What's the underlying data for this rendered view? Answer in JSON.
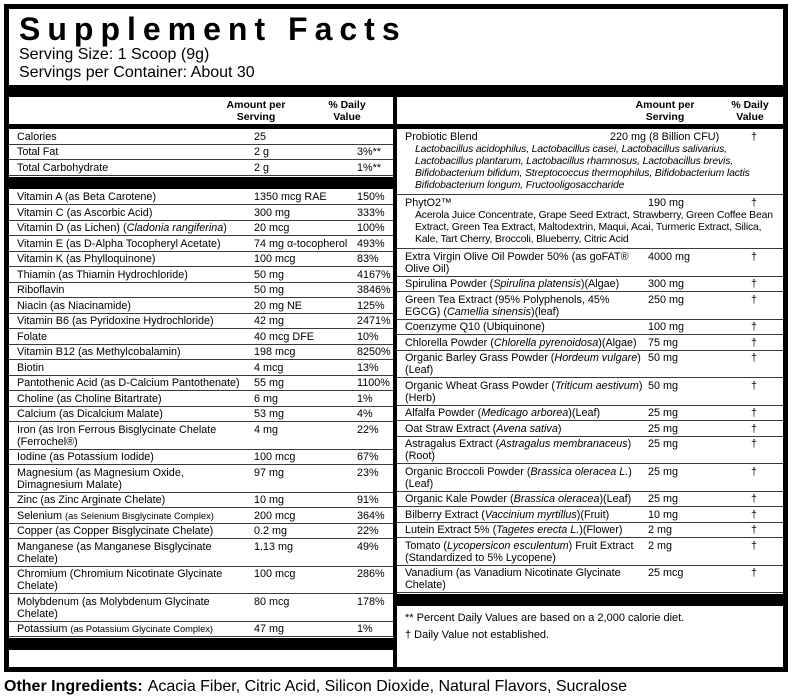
{
  "title": "Supplement Facts",
  "serving_size": "Serving Size: 1 Scoop (9g)",
  "servings_per_container": "Servings per Container: About 30",
  "table_header": {
    "amount": "Amount per Serving",
    "daily_value": "% Daily Value"
  },
  "left_rows": [
    {
      "name": "Calories",
      "amount": "25",
      "dv": ""
    },
    {
      "name": "Total Fat",
      "amount": "2 g",
      "dv": "3%**"
    },
    {
      "name": "Total Carbohydrate",
      "amount": "2 g",
      "dv": "1%**"
    },
    {
      "bar": true
    },
    {
      "name": "Vitamin A (as Beta Carotene)",
      "amount": "1350 mcg RAE",
      "dv": "150%"
    },
    {
      "name": "Vitamin C (as Ascorbic Acid)",
      "amount": "300 mg",
      "dv": "333%"
    },
    {
      "name": "Vitamin D (as Lichen) (*Cladonia rangiferina*)",
      "amount": "20 mcg",
      "dv": "100%"
    },
    {
      "name": "Vitamin E (as D-Alpha Tocopheryl Acetate)",
      "amount": "74 mg α-tocopherol",
      "dv": "493%"
    },
    {
      "name": "Vitamin K (as Phylloquinone)",
      "amount": "100 mcg",
      "dv": "83%"
    },
    {
      "name": "Thiamin (as Thiamin Hydrochloride)",
      "amount": "50 mg",
      "dv": "4167%"
    },
    {
      "name": "Riboflavin",
      "amount": "50 mg",
      "dv": "3846%"
    },
    {
      "name": "Niacin (as Niacinamide)",
      "amount": "20 mg NE",
      "dv": "125%"
    },
    {
      "name": "Vitamin B6 (as Pyridoxine Hydrochloride)",
      "amount": "42 mg",
      "dv": "2471%"
    },
    {
      "name": "Folate",
      "amount": "40 mcg DFE",
      "dv": "10%"
    },
    {
      "name": "Vitamin B12 (as Methylcobalamin)",
      "amount": "198 mcg",
      "dv": "8250%"
    },
    {
      "name": "Biotin",
      "amount": "4 mcg",
      "dv": "13%"
    },
    {
      "name": "Pantothenic Acid (as D-Calcium Pantothenate)",
      "amount": "55 mg",
      "dv": "1100%"
    },
    {
      "name": "Choline (as Choline Bitartrate)",
      "amount": "6 mg",
      "dv": "1%"
    },
    {
      "name": "Calcium (as Dicalcium Malate)",
      "amount": "53 mg",
      "dv": "4%"
    },
    {
      "name": "Iron (as Iron Ferrous Bisglycinate Chelate (Ferrochel®)",
      "amount": "4 mg",
      "dv": "22%"
    },
    {
      "name": "Iodine (as Potassium Iodide)",
      "amount": "100 mcg",
      "dv": "67%"
    },
    {
      "name": "Magnesium (as Magnesium Oxide, Dimagnesium Malate)",
      "amount": "97 mg",
      "dv": "23%"
    },
    {
      "name": "Zinc (as Zinc Arginate Chelate)",
      "amount": "10 mg",
      "dv": "91%"
    },
    {
      "name": "Selenium ~(as Selenium Bisglycinate Complex)~",
      "amount": "200 mcg",
      "dv": "364%"
    },
    {
      "name": "Copper (as Copper Bisglycinate Chelate)",
      "amount": "0.2 mg",
      "dv": "22%"
    },
    {
      "name": "Manganese (as Manganese Bisglycinate Chelate)",
      "amount": "1.13 mg",
      "dv": "49%"
    },
    {
      "name": "Chromium (Chromium Nicotinate Glycinate Chelate)",
      "amount": "100 mcg",
      "dv": "286%"
    },
    {
      "name": "Molybdenum (as Molybdenum Glycinate Chelate)",
      "amount": "80 mcg",
      "dv": "178%"
    },
    {
      "name": "Potassium ~(as Potassium Glycinate Complex)~",
      "amount": "47 mg",
      "dv": "1%"
    },
    {
      "bar": true
    }
  ],
  "right_rows": [
    {
      "name": "Probiotic Blend",
      "amount": "220 mg (8 Billion CFU)",
      "dv": "†",
      "sub": "*Lactobacillus acidophilus, Lactobacillus casei, Lactobacillus salivarius, Lactobacillus plantarum, Lactobacillus rhamnosus, Lactobacillus brevis, Bifidobacterium bifidum, Streptococcus thermophilus, Bifidobacterium lactis Bifidobacterium longum, Fructooligosaccharide*"
    },
    {
      "name": "PhytO2™",
      "amount": "190 mg",
      "dv": "†",
      "sub": "Acerola Juice Concentrate, Grape Seed Extract, Strawberry, Green Coffee Bean Extract, Green Tea Extract, Maltodextrin, Maqui, Acai, Turmeric Extract, Silica, Kale, Tart Cherry, Broccoli, Blueberry, Citric Acid"
    },
    {
      "name": "Extra Virgin Olive Oil Powder 50% (as goFAT® Olive Oil)",
      "amount": "4000 mg",
      "dv": "†"
    },
    {
      "name": "Spirulina Powder (*Spirulina platensis*)(Algae)",
      "amount": "300 mg",
      "dv": "†"
    },
    {
      "name": "Green Tea Extract (95% Polyphenols, 45% EGCG) (*Camellia sinensis*)(leaf)",
      "amount": "250 mg",
      "dv": "†"
    },
    {
      "name": "Coenzyme Q10 (Ubiquinone)",
      "amount": "100 mg",
      "dv": "†"
    },
    {
      "name": "Chlorella Powder (*Chlorella pyrenoidosa*)(Algae)",
      "amount": "75 mg",
      "dv": "†"
    },
    {
      "name": "Organic Barley Grass Powder (*Hordeum vulgare*)(Leaf)",
      "amount": "50 mg",
      "dv": "†"
    },
    {
      "name": "Organic Wheat Grass Powder (*Triticum aestivum*)(Herb)",
      "amount": "50 mg",
      "dv": "†"
    },
    {
      "name": "Alfalfa Powder (*Medicago arborea*)(Leaf)",
      "amount": "25 mg",
      "dv": "†"
    },
    {
      "name": "Oat Straw Extract (*Avena sativa*)",
      "amount": "25 mg",
      "dv": "†"
    },
    {
      "name": "Astragalus Extract (*Astragalus membranaceus*)(Root)",
      "amount": "25 mg",
      "dv": "†"
    },
    {
      "name": "Organic Broccoli Powder (*Brassica oleracea L.*)(Leaf)",
      "amount": "25 mg",
      "dv": "†"
    },
    {
      "name": "Organic Kale Powder (*Brassica oleracea*)(Leaf)",
      "amount": "25 mg",
      "dv": "†"
    },
    {
      "name": "Bilberry Extract (*Vaccinium myrtillus*)(Fruit)",
      "amount": "10 mg",
      "dv": "†"
    },
    {
      "name": "Lutein Extract 5% (*Tagetes erecta L.*)(Flower)",
      "amount": "2 mg",
      "dv": "†"
    },
    {
      "name": "Tomato (*Lycopersicon esculentum*) Fruit Extract (Standardized to 5% Lycopene)",
      "amount": "2 mg",
      "dv": "†"
    },
    {
      "name": "Vanadium (as Vanadium Nicotinate Glycinate Chelate)",
      "amount": "25 mcg",
      "dv": "†"
    },
    {
      "bar": true
    }
  ],
  "footnotes": [
    "** Percent Daily Values are based on a 2,000 calorie diet.",
    "† Daily Value not established."
  ],
  "other_ingredients": {
    "label": "Other Ingredients:",
    "text": "Acacia Fiber, Citric Acid, Silicon Dioxide, Natural Flavors, Sucralose"
  }
}
